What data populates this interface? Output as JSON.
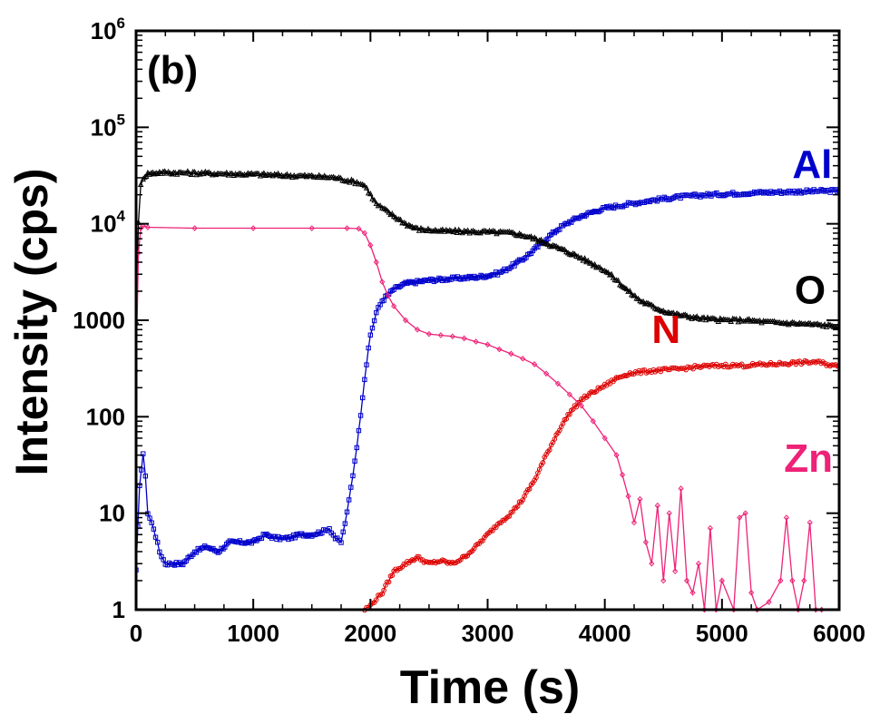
{
  "chart_data": {
    "type": "line",
    "panel_label": "(b)",
    "xlabel": "Time (s)",
    "ylabel": "Intensity (cps)",
    "xlim": [
      0,
      6000
    ],
    "ylim": [
      1,
      1000000
    ],
    "yscale": "log",
    "x_ticks": [
      0,
      1000,
      2000,
      3000,
      4000,
      5000,
      6000
    ],
    "x_tick_labels": [
      "0",
      "1000",
      "2000",
      "3000",
      "4000",
      "5000",
      "6000"
    ],
    "y_ticks": [
      1,
      10,
      100,
      1000,
      10000,
      100000,
      1000000
    ],
    "y_tick_labels": [
      {
        "base": "1",
        "exp": ""
      },
      {
        "base": "10",
        "exp": ""
      },
      {
        "base": "100",
        "exp": ""
      },
      {
        "base": "1000",
        "exp": ""
      },
      {
        "base": "10",
        "exp": "4"
      },
      {
        "base": "10",
        "exp": "5"
      },
      {
        "base": "10",
        "exp": "6"
      }
    ],
    "series": [
      {
        "name": "Al",
        "color": "#0000cc",
        "marker": "square",
        "label_pos": [
          5600,
          30000
        ],
        "points": [
          [
            0,
            2.5
          ],
          [
            30,
            20
          ],
          [
            60,
            40
          ],
          [
            80,
            25
          ],
          [
            100,
            10
          ],
          [
            150,
            7
          ],
          [
            200,
            4
          ],
          [
            250,
            3
          ],
          [
            300,
            3
          ],
          [
            400,
            3
          ],
          [
            500,
            4
          ],
          [
            600,
            4.5
          ],
          [
            700,
            4
          ],
          [
            800,
            5
          ],
          [
            900,
            5
          ],
          [
            1000,
            5
          ],
          [
            1100,
            6
          ],
          [
            1200,
            5.5
          ],
          [
            1300,
            5.5
          ],
          [
            1400,
            6
          ],
          [
            1500,
            6
          ],
          [
            1600,
            6.5
          ],
          [
            1650,
            7
          ],
          [
            1700,
            5.5
          ],
          [
            1750,
            5
          ],
          [
            1800,
            10
          ],
          [
            1850,
            25
          ],
          [
            1900,
            70
          ],
          [
            1950,
            250
          ],
          [
            2000,
            700
          ],
          [
            2050,
            1200
          ],
          [
            2100,
            1600
          ],
          [
            2200,
            2100
          ],
          [
            2300,
            2400
          ],
          [
            2400,
            2500
          ],
          [
            2500,
            2600
          ],
          [
            2600,
            2650
          ],
          [
            2700,
            2700
          ],
          [
            2800,
            2750
          ],
          [
            2900,
            2800
          ],
          [
            3000,
            2900
          ],
          [
            3100,
            3100
          ],
          [
            3200,
            3600
          ],
          [
            3300,
            4300
          ],
          [
            3400,
            5400
          ],
          [
            3500,
            7000
          ],
          [
            3600,
            8800
          ],
          [
            3700,
            10500
          ],
          [
            3800,
            12000
          ],
          [
            3900,
            13300
          ],
          [
            4000,
            14500
          ],
          [
            4200,
            16000
          ],
          [
            4400,
            17500
          ],
          [
            4600,
            18800
          ],
          [
            4800,
            19700
          ],
          [
            5000,
            20300
          ],
          [
            5200,
            20800
          ],
          [
            5400,
            21200
          ],
          [
            5600,
            21500
          ],
          [
            5800,
            21800
          ],
          [
            6000,
            22000
          ]
        ]
      },
      {
        "name": "O",
        "color": "#000000",
        "marker": "triangle",
        "label_pos": [
          5620,
          1500
        ],
        "points": [
          [
            0,
            1000
          ],
          [
            20,
            10000
          ],
          [
            40,
            25000
          ],
          [
            60,
            30000
          ],
          [
            100,
            33000
          ],
          [
            200,
            34000
          ],
          [
            500,
            33500
          ],
          [
            1000,
            32500
          ],
          [
            1500,
            31000
          ],
          [
            1700,
            30000
          ],
          [
            1900,
            26500
          ],
          [
            1950,
            25000
          ],
          [
            2000,
            20000
          ],
          [
            2050,
            16000
          ],
          [
            2100,
            14500
          ],
          [
            2200,
            12000
          ],
          [
            2300,
            10000
          ],
          [
            2400,
            8800
          ],
          [
            2600,
            8400
          ],
          [
            2800,
            8300
          ],
          [
            3000,
            8200
          ],
          [
            3200,
            8000
          ],
          [
            3300,
            7600
          ],
          [
            3400,
            7000
          ],
          [
            3500,
            6300
          ],
          [
            3600,
            5600
          ],
          [
            3700,
            5000
          ],
          [
            3800,
            4400
          ],
          [
            3900,
            3800
          ],
          [
            4000,
            3300
          ],
          [
            4100,
            2600
          ],
          [
            4200,
            2000
          ],
          [
            4300,
            1600
          ],
          [
            4400,
            1400
          ],
          [
            4500,
            1250
          ],
          [
            4600,
            1150
          ],
          [
            4700,
            1100
          ],
          [
            4800,
            1050
          ],
          [
            5000,
            1000
          ],
          [
            5200,
            1000
          ],
          [
            5400,
            950
          ],
          [
            5600,
            930
          ],
          [
            5800,
            900
          ],
          [
            6000,
            860
          ]
        ]
      },
      {
        "name": "N",
        "color": "#dd0000",
        "marker": "circle",
        "label_pos": [
          4400,
          580
        ],
        "points": [
          [
            1950,
            1
          ],
          [
            2000,
            1.1
          ],
          [
            2050,
            1.3
          ],
          [
            2100,
            1.5
          ],
          [
            2200,
            2.5
          ],
          [
            2300,
            3
          ],
          [
            2400,
            3.5
          ],
          [
            2500,
            3
          ],
          [
            2600,
            3.2
          ],
          [
            2700,
            3
          ],
          [
            2800,
            3.5
          ],
          [
            2900,
            4.5
          ],
          [
            3000,
            6
          ],
          [
            3100,
            8
          ],
          [
            3200,
            10
          ],
          [
            3300,
            14
          ],
          [
            3400,
            22
          ],
          [
            3500,
            40
          ],
          [
            3600,
            70
          ],
          [
            3700,
            110
          ],
          [
            3800,
            150
          ],
          [
            3900,
            180
          ],
          [
            4000,
            210
          ],
          [
            4100,
            250
          ],
          [
            4200,
            280
          ],
          [
            4400,
            300
          ],
          [
            4600,
            310
          ],
          [
            4800,
            330
          ],
          [
            5000,
            340
          ],
          [
            5200,
            340
          ],
          [
            5400,
            350
          ],
          [
            5600,
            360
          ],
          [
            5800,
            370
          ],
          [
            6000,
            330
          ]
        ]
      },
      {
        "name": "Zn",
        "color": "#ee2277",
        "marker": "diamond",
        "label_pos": [
          5530,
          27
        ],
        "points": [
          [
            0,
            300
          ],
          [
            20,
            5000
          ],
          [
            40,
            9000
          ],
          [
            60,
            9500
          ],
          [
            100,
            9200
          ],
          [
            500,
            9000
          ],
          [
            1000,
            9000
          ],
          [
            1500,
            9000
          ],
          [
            1800,
            9000
          ],
          [
            1900,
            8900
          ],
          [
            1950,
            8000
          ],
          [
            2000,
            6000
          ],
          [
            2050,
            4000
          ],
          [
            2100,
            2500
          ],
          [
            2150,
            1800
          ],
          [
            2200,
            1400
          ],
          [
            2300,
            1000
          ],
          [
            2400,
            800
          ],
          [
            2500,
            720
          ],
          [
            2600,
            700
          ],
          [
            2700,
            680
          ],
          [
            2800,
            650
          ],
          [
            2900,
            600
          ],
          [
            3000,
            560
          ],
          [
            3100,
            500
          ],
          [
            3200,
            450
          ],
          [
            3300,
            400
          ],
          [
            3400,
            350
          ],
          [
            3500,
            280
          ],
          [
            3600,
            220
          ],
          [
            3700,
            170
          ],
          [
            3800,
            130
          ],
          [
            3900,
            90
          ],
          [
            4000,
            60
          ],
          [
            4100,
            40
          ],
          [
            4150,
            25
          ],
          [
            4200,
            15
          ],
          [
            4250,
            8
          ],
          [
            4300,
            14
          ],
          [
            4350,
            5
          ],
          [
            4400,
            3
          ],
          [
            4450,
            12
          ],
          [
            4500,
            2
          ],
          [
            4550,
            10
          ],
          [
            4600,
            2.5
          ],
          [
            4650,
            18
          ],
          [
            4700,
            2
          ],
          [
            4750,
            1.5
          ],
          [
            4800,
            3
          ],
          [
            4850,
            1
          ],
          [
            4900,
            7
          ],
          [
            4950,
            1
          ],
          [
            5000,
            2
          ],
          [
            5100,
            1
          ],
          [
            5150,
            9
          ],
          [
            5200,
            10
          ],
          [
            5250,
            1.5
          ],
          [
            5300,
            1
          ],
          [
            5400,
            1.2
          ],
          [
            5500,
            2
          ],
          [
            5550,
            9
          ],
          [
            5600,
            2
          ],
          [
            5650,
            1
          ],
          [
            5700,
            2
          ],
          [
            5750,
            8
          ],
          [
            5800,
            1
          ],
          [
            5850,
            1
          ]
        ]
      }
    ]
  }
}
